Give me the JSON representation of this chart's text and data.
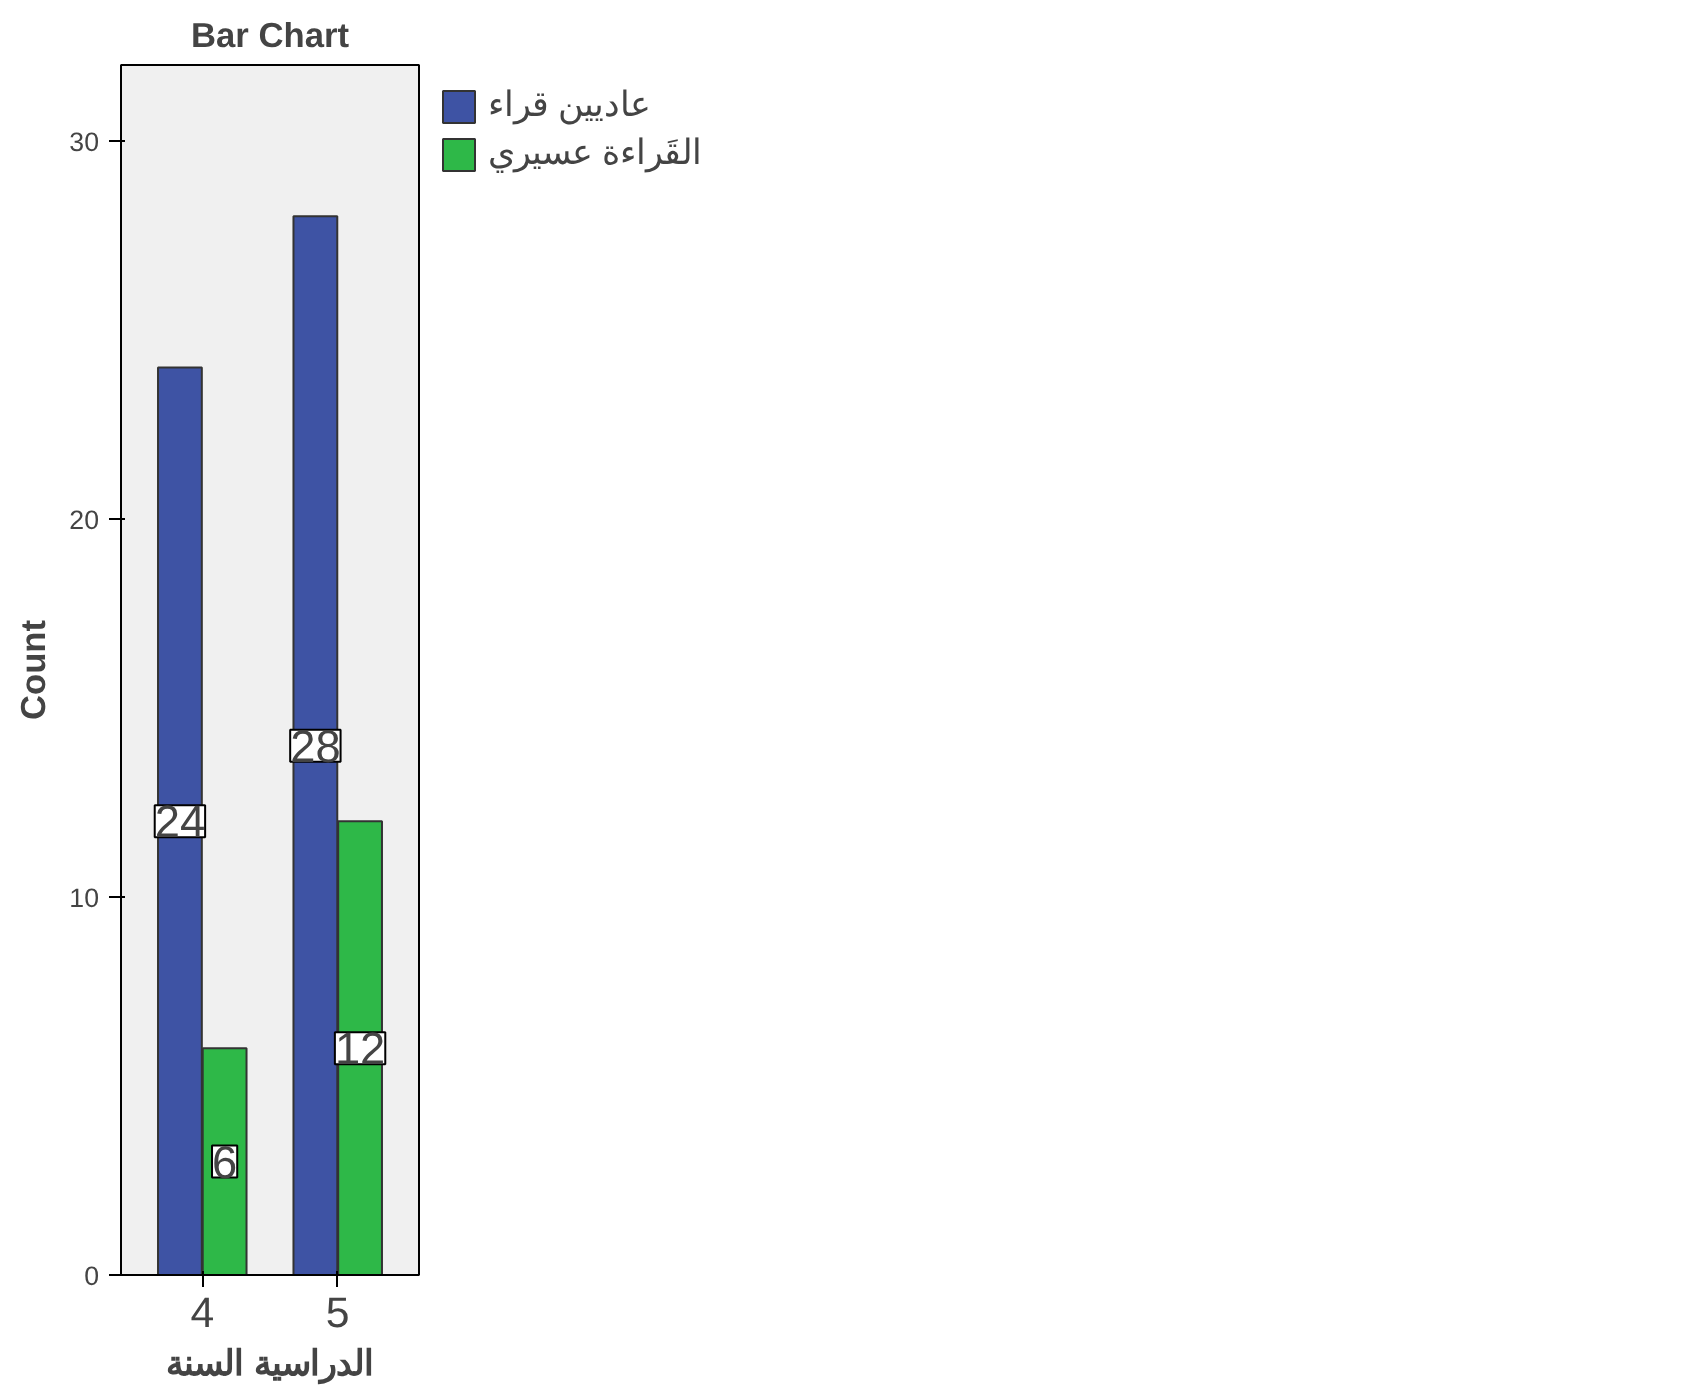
{
  "chart_data": {
    "type": "bar",
    "title": "Bar Chart",
    "xlabel": "الدراسية السنة",
    "ylabel": "Count",
    "categories": [
      "4",
      "5"
    ],
    "series": [
      {
        "name": "عاديين قراء",
        "color": "#3e53a4",
        "values": [
          24,
          28
        ]
      },
      {
        "name": "القَراءة عسيري",
        "color": "#2eb848",
        "values": [
          6,
          12
        ]
      }
    ],
    "ylim": [
      0,
      32
    ],
    "yticks": [
      0,
      10,
      20,
      30
    ],
    "grid": false,
    "legend": "right",
    "data_labels": true
  }
}
